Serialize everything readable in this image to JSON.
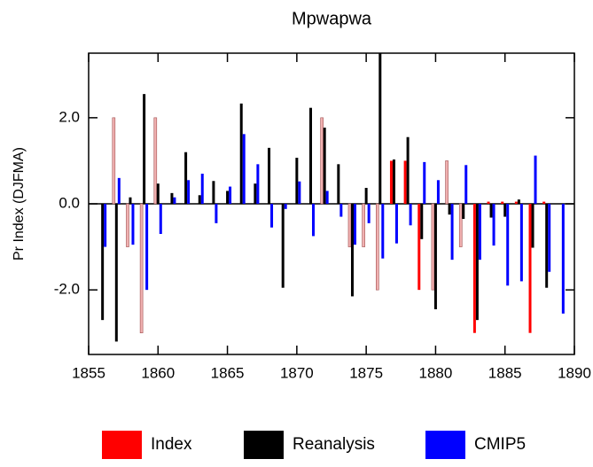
{
  "chart_data": {
    "type": "bar",
    "title": "Mpwapwa",
    "y_label": "Pr Index (DJFMA)",
    "x": [
      1856,
      1857,
      1858,
      1859,
      1860,
      1861,
      1862,
      1863,
      1864,
      1865,
      1866,
      1867,
      1868,
      1869,
      1870,
      1871,
      1872,
      1873,
      1874,
      1875,
      1876,
      1877,
      1878,
      1879,
      1880,
      1881,
      1882,
      1883,
      1884,
      1885,
      1886,
      1887,
      1888,
      1889
    ],
    "series": [
      {
        "name": "Index",
        "color": "#ff0000",
        "colors": [
          "#f0b0b0",
          "#f0b0b0",
          "#f0b0b0",
          "#f0b0b0",
          "#f0b0b0",
          "#f0b0b0",
          "#f0b0b0",
          "#f0b0b0",
          "#f0b0b0",
          "#f0b0b0",
          "#f0b0b0",
          "#f0b0b0",
          "#f0b0b0",
          "#f0b0b0",
          "#f0b0b0",
          "#f0b0b0",
          "#f0b0b0",
          "#f0b0b0",
          "#f0b0b0",
          "#f0b0b0",
          "#f0b0b0",
          "#ff0000",
          "#ff0000",
          "#ff0000",
          "#f0b0b0",
          "#f0b0b0",
          "#f0b0b0",
          "#ff0000",
          "#ff0000",
          "#ff0000",
          "#ff0000",
          "#ff0000",
          "#ff0000",
          "#ff0000"
        ],
        "values": [
          0,
          2.0,
          -1.0,
          -3.0,
          2.0,
          0,
          0,
          0,
          0,
          0,
          0,
          0,
          0,
          0,
          0,
          0,
          2.0,
          0,
          -1.0,
          -1.0,
          -2.0,
          1.0,
          1.0,
          -2.0,
          -2.0,
          1.0,
          -1.0,
          -3.0,
          0.05,
          0.05,
          0.05,
          -3.0,
          0.05,
          0
        ]
      },
      {
        "name": "Reanalysis",
        "color": "#000000",
        "values": [
          -2.7,
          -3.2,
          0.15,
          2.55,
          0.47,
          0.25,
          1.2,
          0.2,
          0.53,
          0.3,
          2.33,
          0.47,
          1.3,
          -1.95,
          1.07,
          2.23,
          1.77,
          0.92,
          -2.15,
          0.37,
          3.5,
          1.03,
          1.55,
          -0.82,
          -2.45,
          -0.25,
          -0.35,
          -2.7,
          -0.32,
          -0.3,
          0.1,
          -1.02,
          -1.95,
          0
        ]
      },
      {
        "name": "CMIP5",
        "color": "#0000ff",
        "values": [
          -1.0,
          0.6,
          -0.95,
          -2.0,
          -0.7,
          0.15,
          0.55,
          0.7,
          -0.45,
          0.4,
          1.62,
          0.92,
          -0.55,
          -0.12,
          0.52,
          -0.75,
          0.3,
          -0.3,
          -0.95,
          -0.45,
          -1.27,
          -0.92,
          -0.5,
          0.97,
          0.55,
          -1.3,
          0.9,
          -1.3,
          -0.97,
          -1.9,
          -1.8,
          1.12,
          -1.58,
          -2.55
        ]
      }
    ],
    "xlim": [
      1855,
      1890
    ],
    "xticks": [
      1855,
      1860,
      1865,
      1870,
      1875,
      1880,
      1885,
      1890
    ],
    "ylim": [
      -3.5,
      3.5
    ],
    "yticks": [
      {
        "value": -2,
        "label": "-2.0"
      },
      {
        "value": 0,
        "label": "0.0"
      },
      {
        "value": 2,
        "label": "2.0"
      }
    ],
    "legend": "bottom"
  }
}
